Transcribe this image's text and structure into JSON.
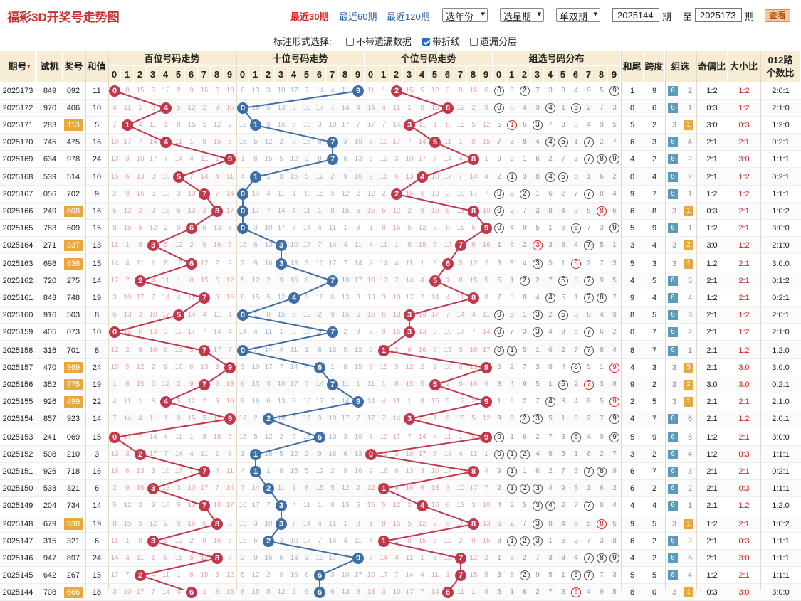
{
  "header": {
    "title": "福彩3D开奖号走势图",
    "quick_links": [
      "最近30期",
      "最近60期",
      "最近120期"
    ],
    "active_link": 0,
    "sel_year": "选年份",
    "sel_week": "选星期",
    "sel_odd": "单双期",
    "from_value": "2025144",
    "from_label": "期",
    "to_prefix": "至",
    "to_value": "2025173",
    "to_label": "期",
    "query_button": "查看"
  },
  "options": {
    "label": "标注形式选择:",
    "items": [
      {
        "label": "不带遗漏数据",
        "checked": false
      },
      {
        "label": "带折线",
        "checked": true
      },
      {
        "label": "遗漏分层",
        "checked": false
      }
    ]
  },
  "columns": {
    "period": "期号",
    "test": "试机",
    "prize": "奖号",
    "sum": "和值",
    "hundreds": "百位号码走势",
    "tens": "十位号码走势",
    "units": "个位号码走势",
    "group_dist": "组选号码分布",
    "sum_tail": "和尾",
    "span": "跨度",
    "group_type": "组选",
    "odd_even": "奇偶比",
    "big_small": "大小比",
    "mod3_line1": "012路",
    "mod3_line2": "个数比",
    "digits": [
      "0",
      "1",
      "2",
      "3",
      "4",
      "5",
      "6",
      "7",
      "8",
      "9"
    ]
  },
  "colors": {
    "hundreds": "#c2374a",
    "tens": "#3d6ea8",
    "units": "#c2374a",
    "group6": "#5b9ab8",
    "group3": "#e8a83c"
  },
  "rows": [
    {
      "period": "2025173",
      "test": "849",
      "prize": "092",
      "sum": "11",
      "tail": "1",
      "span": "9",
      "g": "6",
      "gt": "2",
      "oe": "1:2",
      "bs": "1:2",
      "m3": "2:0:1"
    },
    {
      "period": "2025172",
      "test": "970",
      "prize": "406",
      "sum": "10",
      "tail": "0",
      "span": "6",
      "g": "6",
      "gt": "1",
      "oe": "0:3",
      "bs": "1:2",
      "m3": "2:1:0"
    },
    {
      "period": "2025171",
      "test": "283",
      "prize": "113",
      "sum": "5",
      "tail": "5",
      "span": "2",
      "g": "1",
      "gt": "3",
      "oe": "3:0",
      "bs": "0:3",
      "m3": "1:2:0"
    },
    {
      "period": "2025170",
      "test": "745",
      "prize": "475",
      "sum": "16",
      "tail": "6",
      "span": "3",
      "g": "6",
      "gt": "4",
      "oe": "2:1",
      "bs": "2:1",
      "m3": "0:2:1"
    },
    {
      "period": "2025169",
      "test": "634",
      "prize": "978",
      "sum": "24",
      "tail": "4",
      "span": "2",
      "g": "6",
      "gt": "2",
      "oe": "2:1",
      "bs": "3:0",
      "m3": "1:1:1"
    },
    {
      "period": "2025168",
      "test": "539",
      "prize": "514",
      "sum": "10",
      "tail": "0",
      "span": "4",
      "g": "6",
      "gt": "2",
      "oe": "2:1",
      "bs": "1:2",
      "m3": "0:2:1"
    },
    {
      "period": "2025167",
      "test": "056",
      "prize": "702",
      "sum": "9",
      "tail": "9",
      "span": "7",
      "g": "6",
      "gt": "1",
      "oe": "1:2",
      "bs": "1:2",
      "m3": "1:1:1"
    },
    {
      "period": "2025166",
      "test": "249",
      "prize": "808",
      "sum": "16",
      "tail": "6",
      "span": "8",
      "g": "1",
      "gt": "3",
      "oe": "0:3",
      "bs": "2:1",
      "m3": "1:0:2"
    },
    {
      "period": "2025165",
      "test": "783",
      "prize": "609",
      "sum": "15",
      "tail": "5",
      "span": "9",
      "g": "6",
      "gt": "1",
      "oe": "1:2",
      "bs": "2:1",
      "m3": "3:0:0"
    },
    {
      "period": "2025164",
      "test": "271",
      "prize": "337",
      "sum": "13",
      "tail": "3",
      "span": "4",
      "g": "2",
      "gt": "3",
      "oe": "3:0",
      "bs": "1:2",
      "m3": "2:1:0"
    },
    {
      "period": "2025163",
      "test": "698",
      "prize": "636",
      "sum": "15",
      "tail": "5",
      "span": "3",
      "g": "1",
      "gt": "3",
      "oe": "1:2",
      "bs": "2:1",
      "m3": "3:0:0"
    },
    {
      "period": "2025162",
      "test": "720",
      "prize": "275",
      "sum": "14",
      "tail": "4",
      "span": "5",
      "g": "6",
      "gt": "5",
      "oe": "2:1",
      "bs": "2:1",
      "m3": "0:1:2"
    },
    {
      "period": "2025161",
      "test": "843",
      "prize": "748",
      "sum": "19",
      "tail": "9",
      "span": "4",
      "g": "6",
      "gt": "4",
      "oe": "1:2",
      "bs": "2:1",
      "m3": "0:2:1"
    },
    {
      "period": "2025160",
      "test": "916",
      "prize": "503",
      "sum": "8",
      "tail": "8",
      "span": "5",
      "g": "6",
      "gt": "3",
      "oe": "2:1",
      "bs": "1:2",
      "m3": "2:0:1"
    },
    {
      "period": "2025159",
      "test": "405",
      "prize": "073",
      "sum": "10",
      "tail": "0",
      "span": "7",
      "g": "6",
      "gt": "2",
      "oe": "2:1",
      "bs": "1:2",
      "m3": "2:1:0"
    },
    {
      "period": "2025158",
      "test": "316",
      "prize": "701",
      "sum": "8",
      "tail": "8",
      "span": "7",
      "g": "6",
      "gt": "1",
      "oe": "2:1",
      "bs": "1:2",
      "m3": "1:2:0"
    },
    {
      "period": "2025157",
      "test": "470",
      "prize": "969",
      "sum": "24",
      "tail": "4",
      "span": "3",
      "g": "3",
      "gt": "3",
      "oe": "2:1",
      "bs": "3:0",
      "m3": "3:0:0"
    },
    {
      "period": "2025156",
      "test": "352",
      "prize": "775",
      "sum": "19",
      "tail": "9",
      "span": "2",
      "g": "2",
      "gt": "3",
      "oe": "3:0",
      "bs": "3:0",
      "m3": "0:2:1"
    },
    {
      "period": "2025155",
      "test": "926",
      "prize": "499",
      "sum": "22",
      "tail": "2",
      "span": "5",
      "g": "1",
      "gt": "3",
      "oe": "2:1",
      "bs": "2:1",
      "m3": "2:1:0"
    },
    {
      "period": "2025154",
      "test": "857",
      "prize": "923",
      "sum": "14",
      "tail": "4",
      "span": "7",
      "g": "6",
      "gt": "6",
      "oe": "2:1",
      "bs": "1:2",
      "m3": "2:0:1"
    },
    {
      "period": "2025153",
      "test": "241",
      "prize": "069",
      "sum": "15",
      "tail": "5",
      "span": "9",
      "g": "6",
      "gt": "5",
      "oe": "1:2",
      "bs": "2:1",
      "m3": "3:0:0"
    },
    {
      "period": "2025152",
      "test": "508",
      "prize": "210",
      "sum": "3",
      "tail": "3",
      "span": "2",
      "g": "6",
      "gt": "4",
      "oe": "1:2",
      "bs": "0:3",
      "m3": "1:1:1"
    },
    {
      "period": "2025151",
      "test": "926",
      "prize": "718",
      "sum": "16",
      "tail": "6",
      "span": "7",
      "g": "6",
      "gt": "3",
      "oe": "2:1",
      "bs": "2:1",
      "m3": "0:2:1"
    },
    {
      "period": "2025150",
      "test": "538",
      "prize": "321",
      "sum": "6",
      "tail": "6",
      "span": "2",
      "g": "6",
      "gt": "2",
      "oe": "2:1",
      "bs": "0:3",
      "m3": "1:1:1"
    },
    {
      "period": "2025149",
      "test": "204",
      "prize": "734",
      "sum": "14",
      "tail": "4",
      "span": "4",
      "g": "6",
      "gt": "1",
      "oe": "2:1",
      "bs": "1:2",
      "m3": "1:2:0"
    },
    {
      "period": "2025148",
      "test": "679",
      "prize": "838",
      "sum": "19",
      "tail": "9",
      "span": "5",
      "g": "1",
      "gt": "3",
      "oe": "1:2",
      "bs": "2:1",
      "m3": "1:0:2"
    },
    {
      "period": "2025147",
      "test": "315",
      "prize": "321",
      "sum": "6",
      "tail": "6",
      "span": "2",
      "g": "6",
      "gt": "2",
      "oe": "2:1",
      "bs": "0:3",
      "m3": "1:1:1"
    },
    {
      "period": "2025146",
      "test": "947",
      "prize": "897",
      "sum": "24",
      "tail": "4",
      "span": "2",
      "g": "6",
      "gt": "5",
      "oe": "2:1",
      "bs": "3:0",
      "m3": "1:1:1"
    },
    {
      "period": "2025145",
      "test": "642",
      "prize": "267",
      "sum": "15",
      "tail": "5",
      "span": "5",
      "g": "6",
      "gt": "4",
      "oe": "1:2",
      "bs": "2:1",
      "m3": "1:1:1"
    },
    {
      "period": "2025144",
      "test": "708",
      "prize": "666",
      "sum": "18",
      "tail": "8",
      "span": "0",
      "g": "1",
      "gt": "3",
      "oe": "0:3",
      "bs": "3:0",
      "m3": "3:0:0"
    }
  ]
}
